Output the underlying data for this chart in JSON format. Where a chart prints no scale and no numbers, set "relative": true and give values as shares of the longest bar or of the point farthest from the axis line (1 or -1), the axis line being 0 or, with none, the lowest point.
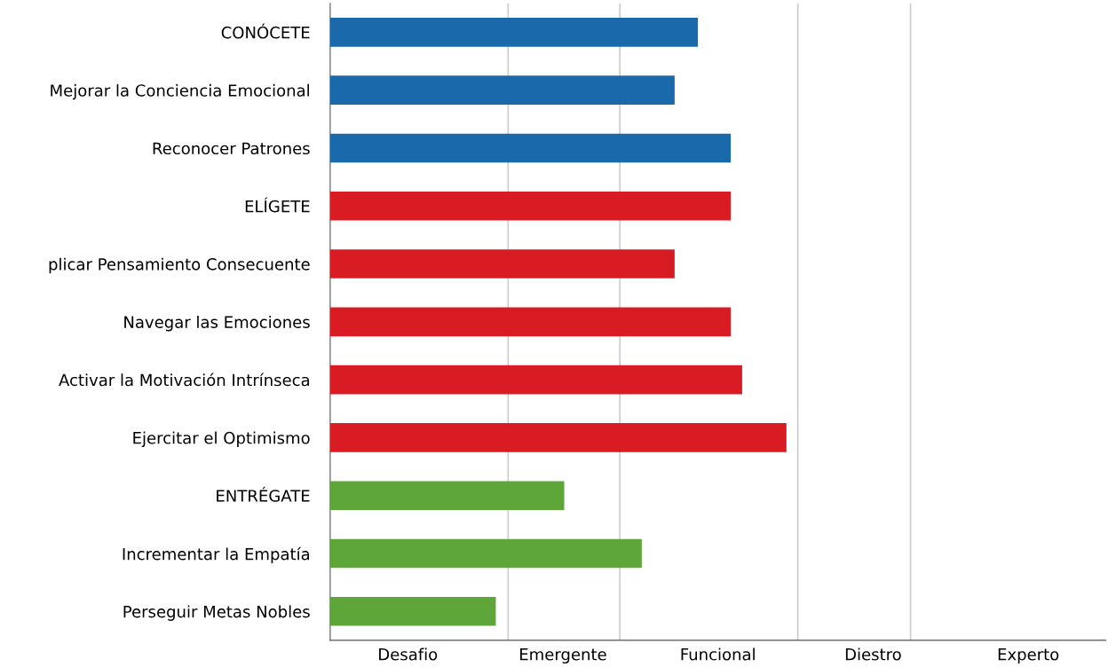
{
  "chart_data": {
    "type": "bar",
    "orientation": "horizontal",
    "relative": true,
    "categories": [
      "CONÓCETE",
      "Mejorar la Conciencia Emocional",
      "Reconocer Patrones",
      "ELÍGETE",
      "plicar Pensamiento Consecuente",
      "Navegar las Emociones",
      "Activar la Motivación Intrínseca",
      "Ejercitar el Optimismo",
      "ENTRÉGATE",
      "Incrementar la Empatía",
      "Perseguir Metas Nobles"
    ],
    "values": [
      0.806,
      0.755,
      0.878,
      0.878,
      0.755,
      0.878,
      0.903,
      1,
      0.513,
      0.683,
      0.363
    ],
    "colors": [
      "#1a6aab",
      "#1a6aab",
      "#1a6aab",
      "#d91c24",
      "#d91c24",
      "#d91c24",
      "#d91c24",
      "#d91c24",
      "#5ea63a",
      "#5ea63a",
      "#5ea63a"
    ],
    "annotations": [
      "Desafio",
      "Emergente",
      "Funcional",
      "Diestro",
      "Experto"
    ],
    "ref_lines": [
      {
        "axis": "x",
        "value": 0.39,
        "color": "#cccccc"
      },
      {
        "axis": "x",
        "value": 0.635,
        "color": "#cccccc"
      },
      {
        "axis": "x",
        "value": 1.025,
        "color": "#cccccc"
      },
      {
        "axis": "x",
        "value": 1.272,
        "color": "#cccccc"
      }
    ]
  }
}
